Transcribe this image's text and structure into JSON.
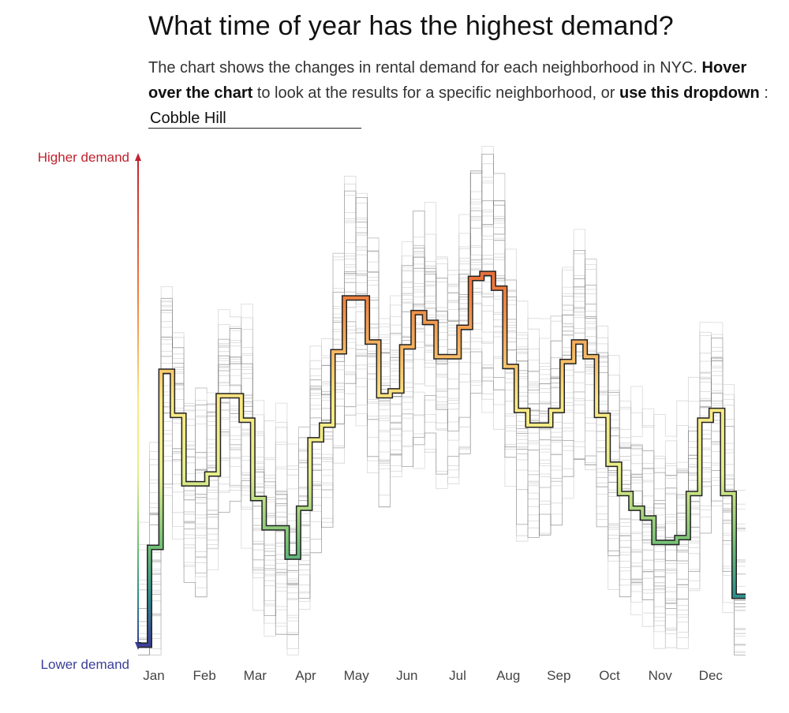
{
  "header": {
    "title": "What time of year has the highest demand?",
    "desc_part1": "The chart shows the changes in rental demand for each neighborhood in NYC. ",
    "desc_bold1": "Hover over the chart",
    "desc_part2": " to look at the results for a specific neighborhood, or ",
    "desc_bold2": "use this dropdown",
    "desc_part3": " : ",
    "dropdown_value": "Cobble Hill"
  },
  "colors": {
    "high": "#c0222f",
    "low": "#3b3f9a",
    "background_lines": "#b8b8b8",
    "axis_text": "#444444"
  },
  "chart_data": {
    "type": "line",
    "step": true,
    "y_axis_top_label": "Higher demand",
    "y_axis_bottom_label": "Lower demand",
    "months": [
      "Jan",
      "Feb",
      "Mar",
      "Apr",
      "May",
      "Jun",
      "Jul",
      "Aug",
      "Sep",
      "Oct",
      "Nov",
      "Dec"
    ],
    "ylim": [
      0,
      1
    ],
    "highlighted_series": {
      "name": "Cobble Hill",
      "values": [
        0.0,
        0.2,
        0.56,
        0.47,
        0.33,
        0.33,
        0.35,
        0.51,
        0.51,
        0.46,
        0.3,
        0.24,
        0.24,
        0.18,
        0.28,
        0.42,
        0.45,
        0.6,
        0.71,
        0.71,
        0.62,
        0.51,
        0.52,
        0.61,
        0.68,
        0.66,
        0.59,
        0.59,
        0.65,
        0.75,
        0.76,
        0.73,
        0.57,
        0.48,
        0.45,
        0.45,
        0.48,
        0.58,
        0.62,
        0.59,
        0.47,
        0.37,
        0.31,
        0.28,
        0.26,
        0.21,
        0.21,
        0.22,
        0.31,
        0.46,
        0.48,
        0.31,
        0.1
      ]
    },
    "background_series_count": 40
  }
}
